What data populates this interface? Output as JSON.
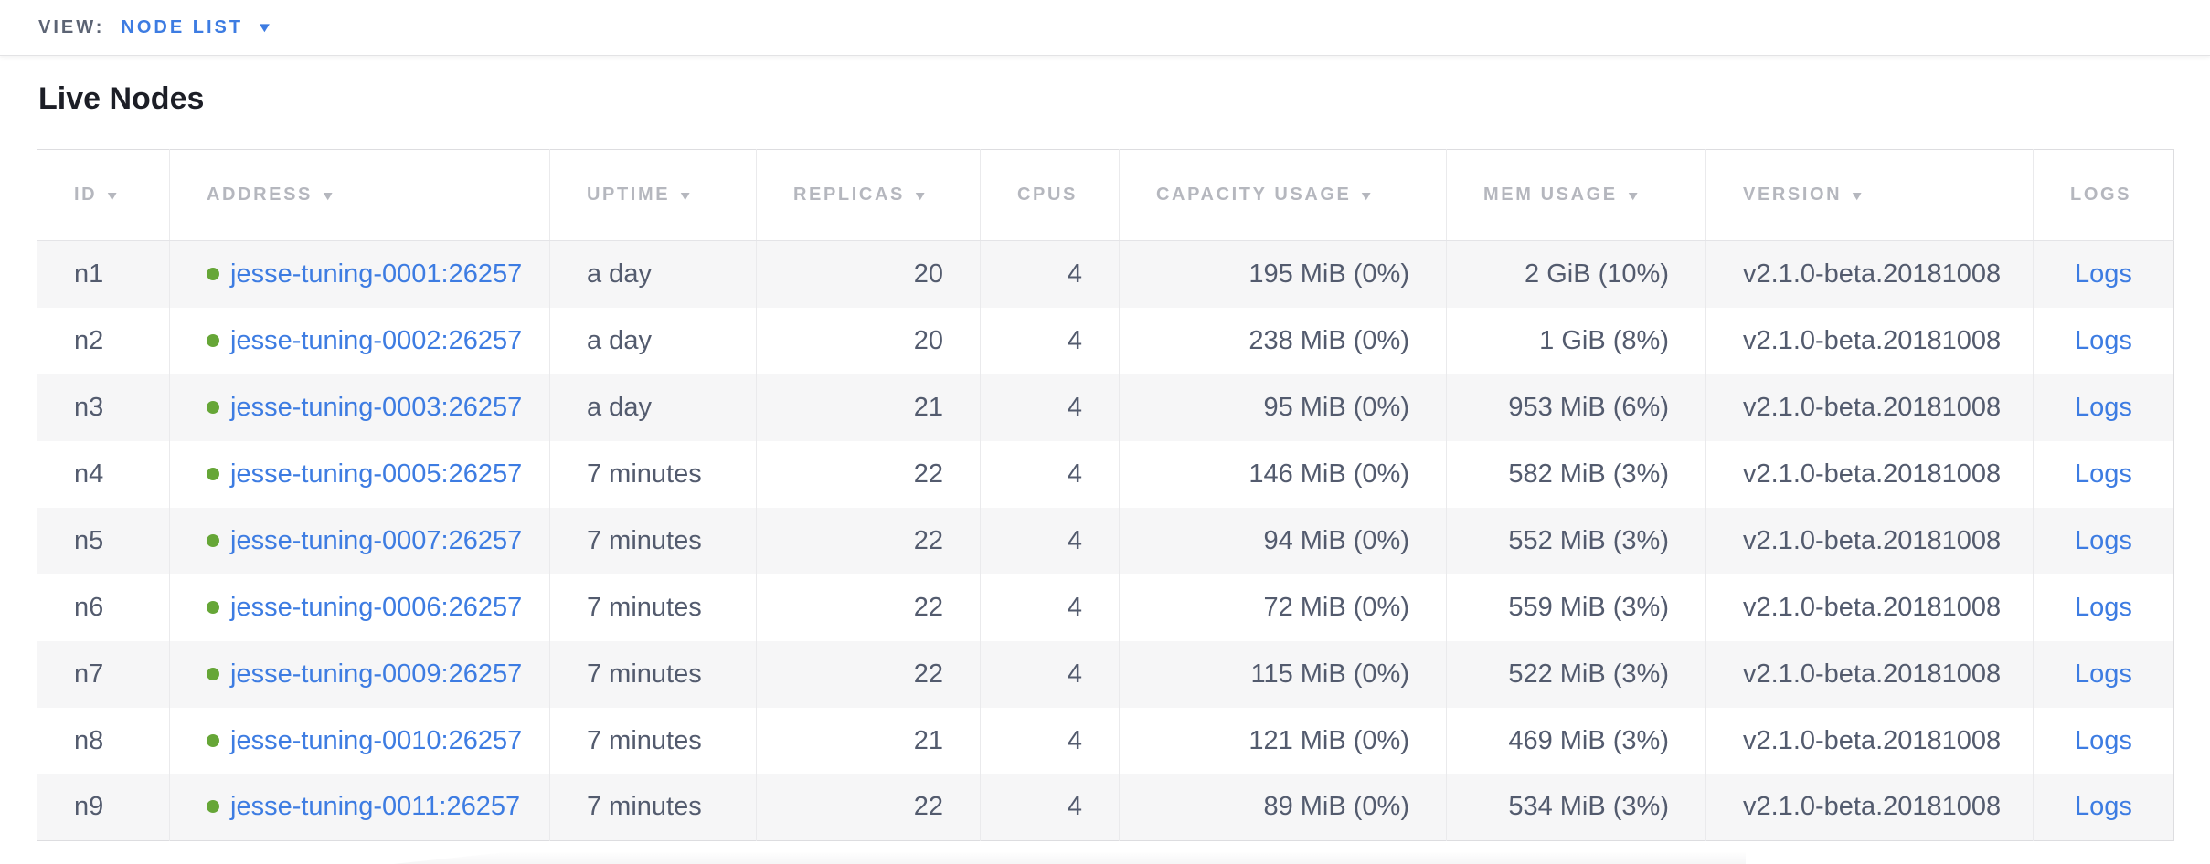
{
  "view_bar": {
    "label": "VIEW:",
    "selected": "NODE LIST"
  },
  "page": {
    "title": "Live Nodes"
  },
  "icons": {
    "sort_caret": "▼",
    "dropdown_caret": "▼"
  },
  "colors": {
    "link_blue": "#3d7ce2",
    "node_live_green": "#66a637",
    "header_gray": "#b5b7be",
    "cell_text": "#535b6e",
    "row_stripe": "#f6f6f7"
  },
  "table": {
    "columns": [
      {
        "key": "id",
        "label": "ID",
        "sortable": true,
        "align": "al"
      },
      {
        "key": "address",
        "label": "ADDRESS",
        "sortable": true,
        "align": "al"
      },
      {
        "key": "uptime",
        "label": "UPTIME",
        "sortable": true,
        "align": "al"
      },
      {
        "key": "replicas",
        "label": "REPLICAS",
        "sortable": true,
        "align": "ar"
      },
      {
        "key": "cpus",
        "label": "CPUS",
        "sortable": false,
        "align": "ar"
      },
      {
        "key": "capacity",
        "label": "CAPACITY USAGE",
        "sortable": true,
        "align": "ar"
      },
      {
        "key": "mem",
        "label": "MEM USAGE",
        "sortable": true,
        "align": "ar"
      },
      {
        "key": "version",
        "label": "VERSION",
        "sortable": true,
        "align": "al"
      },
      {
        "key": "logs",
        "label": "LOGS",
        "sortable": false,
        "align": "ac"
      }
    ],
    "rows": [
      {
        "id": "n1",
        "address": "jesse-tuning-0001:26257",
        "uptime": "a day",
        "replicas": "20",
        "cpus": "4",
        "capacity": "195 MiB (0%)",
        "mem": "2 GiB (10%)",
        "version": "v2.1.0-beta.20181008",
        "logs": "Logs"
      },
      {
        "id": "n2",
        "address": "jesse-tuning-0002:26257",
        "uptime": "a day",
        "replicas": "20",
        "cpus": "4",
        "capacity": "238 MiB (0%)",
        "mem": "1 GiB (8%)",
        "version": "v2.1.0-beta.20181008",
        "logs": "Logs"
      },
      {
        "id": "n3",
        "address": "jesse-tuning-0003:26257",
        "uptime": "a day",
        "replicas": "21",
        "cpus": "4",
        "capacity": "95 MiB (0%)",
        "mem": "953 MiB (6%)",
        "version": "v2.1.0-beta.20181008",
        "logs": "Logs"
      },
      {
        "id": "n4",
        "address": "jesse-tuning-0005:26257",
        "uptime": "7 minutes",
        "replicas": "22",
        "cpus": "4",
        "capacity": "146 MiB (0%)",
        "mem": "582 MiB (3%)",
        "version": "v2.1.0-beta.20181008",
        "logs": "Logs"
      },
      {
        "id": "n5",
        "address": "jesse-tuning-0007:26257",
        "uptime": "7 minutes",
        "replicas": "22",
        "cpus": "4",
        "capacity": "94 MiB (0%)",
        "mem": "552 MiB (3%)",
        "version": "v2.1.0-beta.20181008",
        "logs": "Logs"
      },
      {
        "id": "n6",
        "address": "jesse-tuning-0006:26257",
        "uptime": "7 minutes",
        "replicas": "22",
        "cpus": "4",
        "capacity": "72 MiB (0%)",
        "mem": "559 MiB (3%)",
        "version": "v2.1.0-beta.20181008",
        "logs": "Logs"
      },
      {
        "id": "n7",
        "address": "jesse-tuning-0009:26257",
        "uptime": "7 minutes",
        "replicas": "22",
        "cpus": "4",
        "capacity": "115 MiB (0%)",
        "mem": "522 MiB (3%)",
        "version": "v2.1.0-beta.20181008",
        "logs": "Logs"
      },
      {
        "id": "n8",
        "address": "jesse-tuning-0010:26257",
        "uptime": "7 minutes",
        "replicas": "21",
        "cpus": "4",
        "capacity": "121 MiB (0%)",
        "mem": "469 MiB (3%)",
        "version": "v2.1.0-beta.20181008",
        "logs": "Logs"
      },
      {
        "id": "n9",
        "address": "jesse-tuning-0011:26257",
        "uptime": "7 minutes",
        "replicas": "22",
        "cpus": "4",
        "capacity": "89 MiB (0%)",
        "mem": "534 MiB (3%)",
        "version": "v2.1.0-beta.20181008",
        "logs": "Logs"
      }
    ]
  }
}
